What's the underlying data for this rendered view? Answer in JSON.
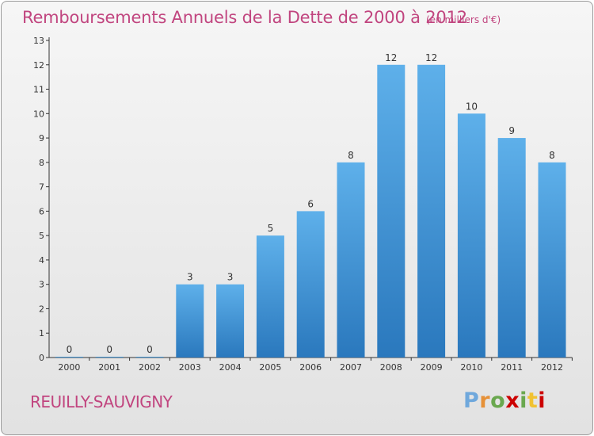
{
  "title": "Remboursements Annuels de la Dette de 2000 à 2012",
  "subtitle": "(en milliers d'€)",
  "town": "REUILLY-SAUVIGNY",
  "logo": {
    "letters": [
      "P",
      "r",
      "o",
      "x",
      "i",
      "t",
      "i"
    ],
    "colors": [
      "#6fa8dc",
      "#e69138",
      "#6aa84f",
      "#cc0000",
      "#6aa84f",
      "#f1c232",
      "#cc0000"
    ]
  },
  "colors": {
    "accent": "#c1457f",
    "bar_top": "#5eb0ea",
    "bar_bottom": "#2a78bd",
    "axis": "#333333"
  },
  "chart_data": {
    "type": "bar",
    "categories": [
      "2000",
      "2001",
      "2002",
      "2003",
      "2004",
      "2005",
      "2006",
      "2007",
      "2008",
      "2009",
      "2010",
      "2011",
      "2012"
    ],
    "values": [
      0,
      0,
      0,
      3,
      3,
      5,
      6,
      8,
      12,
      12,
      10,
      9,
      8
    ],
    "data_labels": [
      "0",
      "0",
      "0",
      "3",
      "3",
      "5",
      "6",
      "8",
      "12",
      "12",
      "10",
      "9",
      "8"
    ],
    "y_ticks": [
      "0",
      "1",
      "2",
      "3",
      "4",
      "5",
      "6",
      "7",
      "8",
      "9",
      "10",
      "11",
      "12",
      "13"
    ],
    "ylim": [
      0,
      13
    ],
    "grid": false,
    "legend": "none"
  }
}
